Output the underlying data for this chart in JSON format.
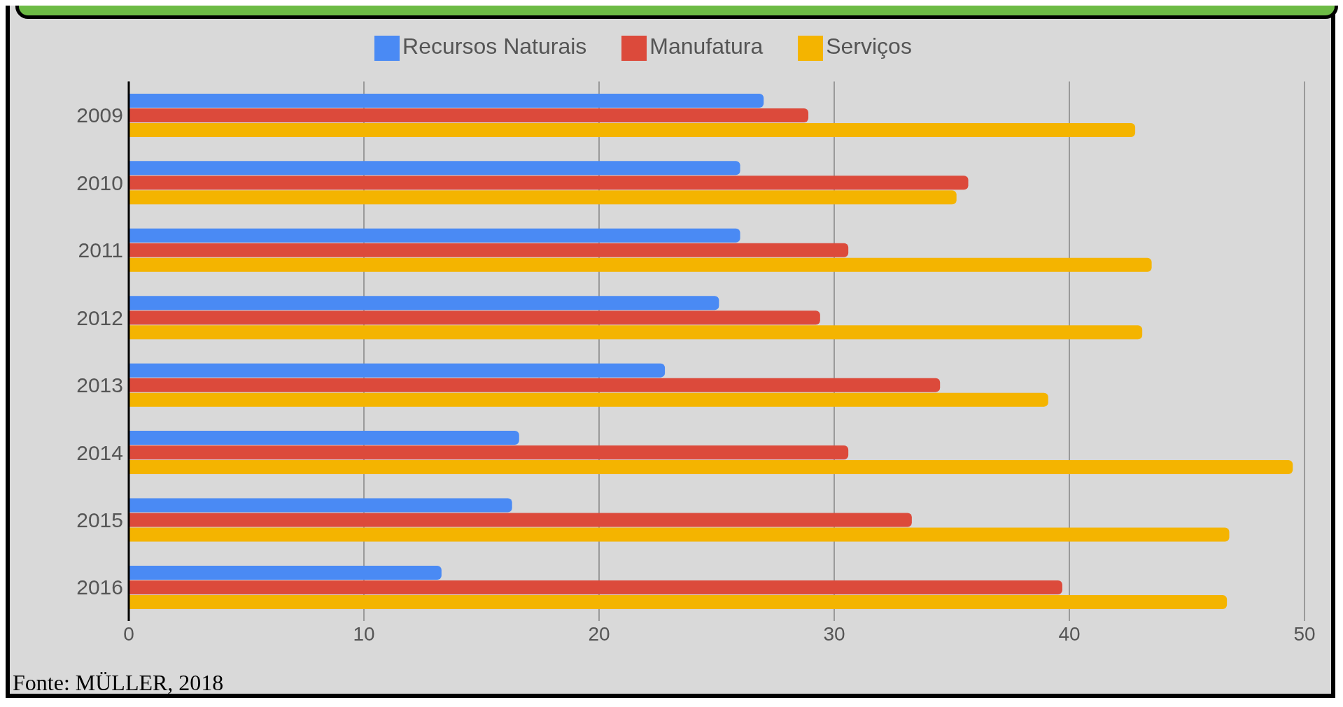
{
  "chart_data": {
    "type": "bar",
    "orientation": "horizontal",
    "categories": [
      "2009",
      "2010",
      "2011",
      "2012",
      "2013",
      "2014",
      "2015",
      "2016"
    ],
    "series": [
      {
        "name": "Recursos Naturais",
        "color": "#4a8af4",
        "values": [
          27,
          26,
          26,
          25.1,
          22.8,
          16.6,
          16.3,
          13.3
        ]
      },
      {
        "name": "Manufatura",
        "color": "#dc4a3b",
        "values": [
          28.9,
          35.7,
          30.6,
          29.4,
          34.5,
          30.6,
          33.3,
          39.7
        ]
      },
      {
        "name": "Serviços",
        "color": "#f4b400",
        "values": [
          42.8,
          35.2,
          43.5,
          43.1,
          39.1,
          49.5,
          46.8,
          46.7
        ]
      }
    ],
    "xlim": [
      0,
      50
    ],
    "xticks": [
      0,
      10,
      20,
      30,
      40,
      50
    ],
    "grid": "x",
    "legend": "top",
    "annotations": [
      "Fonte: MÜLLER, 2018"
    ]
  }
}
